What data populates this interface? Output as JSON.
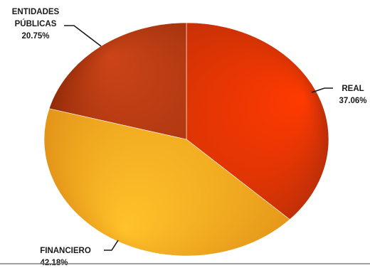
{
  "chart_data": {
    "type": "pie",
    "title": "",
    "slices": [
      {
        "label": "REAL",
        "value_label": "37.06%",
        "value": 37.06,
        "color_light": "#ff3a00",
        "color_dark": "#b82e08"
      },
      {
        "label": "FINANCIERO",
        "value_label": "42.18%",
        "value": 42.18,
        "color_light": "#ffc22a",
        "color_dark": "#e39418"
      },
      {
        "label": "ENTIDADES PÚBLICAS",
        "value_label": "20.75%",
        "value": 20.75,
        "color_light": "#cc4418",
        "color_dark": "#8f2a08"
      }
    ],
    "start_angle_deg": -90,
    "direction": "clockwise",
    "legend": "none"
  },
  "colors": {
    "background": "#ffffff",
    "label_text": "#1a1a1a",
    "leader_line": "#1a1a1a",
    "baseline": "#808080"
  }
}
